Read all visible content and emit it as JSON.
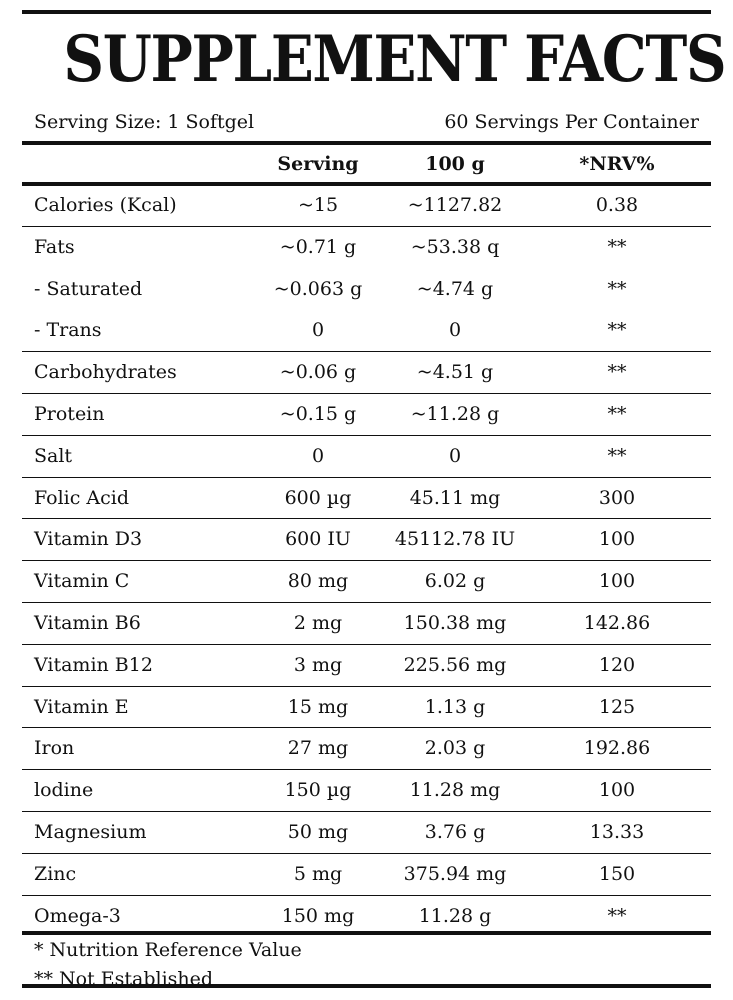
{
  "title": "SUPPLEMENT FACTS",
  "serving_size": "Serving Size: 1 Softgel",
  "servings_per_container": "60 Servings Per Container",
  "columns": {
    "serving": "Serving",
    "per100": "100 g",
    "nrv": "*NRV%"
  },
  "rows": [
    {
      "name": "Calories (Kcal)",
      "serving": "~15",
      "per100": "~1127.82",
      "nrv": "0.38"
    },
    {
      "name": "Fats",
      "serving": "~0.71 g",
      "per100": "~53.38 q",
      "nrv": "**"
    },
    {
      "name": "- Saturated",
      "serving": "~0.063 g",
      "per100": "~4.74 g",
      "nrv": "**"
    },
    {
      "name": "- Trans",
      "serving": "0",
      "per100": "0",
      "nrv": "**"
    },
    {
      "name": "Carbohydrates",
      "serving": "~0.06 g",
      "per100": "~4.51 g",
      "nrv": "**"
    },
    {
      "name": "Protein",
      "serving": "~0.15 g",
      "per100": "~11.28 g",
      "nrv": "**"
    },
    {
      "name": "Salt",
      "serving": "0",
      "per100": "0",
      "nrv": "**"
    },
    {
      "name": "Folic Acid",
      "serving": "600 µg",
      "per100": "45.11 mg",
      "nrv": "300"
    },
    {
      "name": "Vitamin D3",
      "serving": "600 IU",
      "per100": "45112.78 IU",
      "nrv": "100"
    },
    {
      "name": "Vitamin C",
      "serving": "80 mg",
      "per100": "6.02 g",
      "nrv": "100"
    },
    {
      "name": "Vitamin B6",
      "serving": "2 mg",
      "per100": "150.38 mg",
      "nrv": "142.86"
    },
    {
      "name": "Vitamin B12",
      "serving": "3 mg",
      "per100": "225.56 mg",
      "nrv": "120"
    },
    {
      "name": "Vitamin E",
      "serving": "15 mg",
      "per100": "1.13 g",
      "nrv": "125"
    },
    {
      "name": "Iron",
      "serving": "27 mg",
      "per100": "2.03 g",
      "nrv": "192.86"
    },
    {
      "name": "lodine",
      "serving": "150 µg",
      "per100": "11.28 mg",
      "nrv": "100"
    },
    {
      "name": "Magnesium",
      "serving": "50 mg",
      "per100": "3.76 g",
      "nrv": "13.33"
    },
    {
      "name": "Zinc",
      "serving": "5 mg",
      "per100": "375.94 mg",
      "nrv": "150"
    },
    {
      "name": "Omega-3",
      "serving": "150 mg",
      "per100": "11.28 g",
      "nrv": "**"
    }
  ],
  "footnotes": {
    "nrv": "* Nutrition Reference Value",
    "not_established": "** Not Established"
  }
}
